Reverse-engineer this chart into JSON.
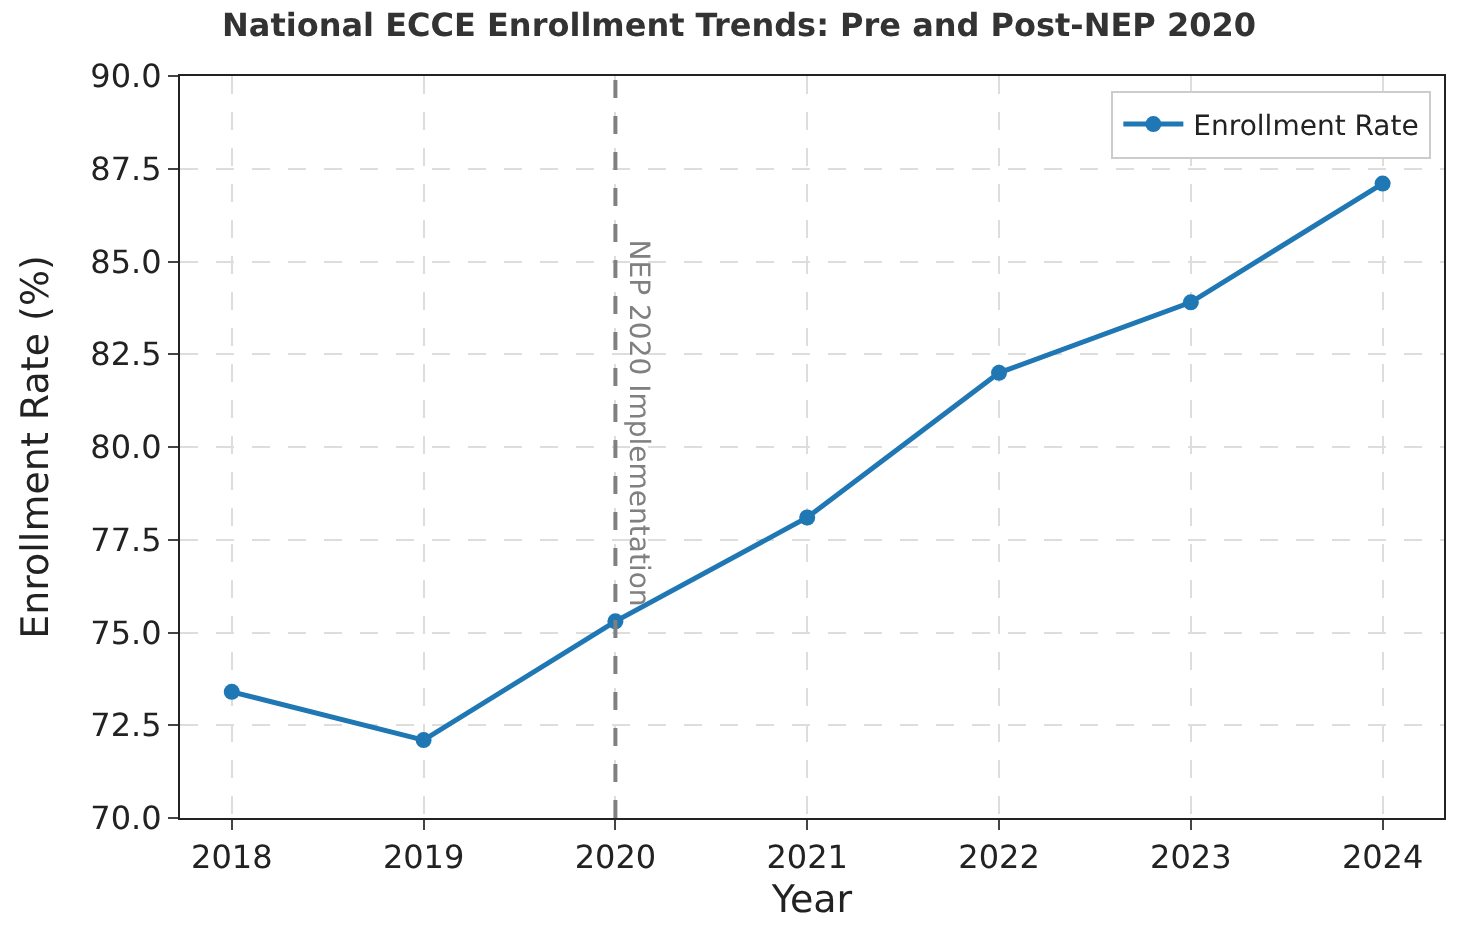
{
  "chart_data": {
    "type": "line",
    "title": "National ECCE Enrollment Trends: Pre and Post-NEP 2020",
    "xlabel": "Year",
    "ylabel": "Enrollment Rate (%)",
    "x": [
      2018,
      2019,
      2020,
      2021,
      2022,
      2023,
      2024
    ],
    "series": [
      {
        "name": "Enrollment Rate",
        "color": "#1f77b4",
        "values": [
          73.4,
          72.1,
          75.3,
          78.1,
          82.0,
          83.9,
          87.1
        ]
      }
    ],
    "xlim": [
      2017.73,
      2024.32
    ],
    "xticks": [
      2018,
      2019,
      2020,
      2021,
      2022,
      2023,
      2024
    ],
    "ylim": [
      70,
      90
    ],
    "yticks": [
      {
        "value": 70,
        "label": "70.0"
      },
      {
        "value": 72.5,
        "label": "72.5"
      },
      {
        "value": 75,
        "label": "75.0"
      },
      {
        "value": 77.5,
        "label": "77.5"
      },
      {
        "value": 80,
        "label": "80.0"
      },
      {
        "value": 82.5,
        "label": "82.5"
      },
      {
        "value": 85,
        "label": "85.0"
      },
      {
        "value": 87.5,
        "label": "87.5"
      },
      {
        "value": 90,
        "label": "90.0"
      }
    ],
    "ref_lines": [
      {
        "axis": "x",
        "value": 2020,
        "label": "NEP 2020 Implementation",
        "color": "#808080",
        "line_style": "dashed"
      }
    ],
    "grid": true,
    "legend": "top right",
    "marker": "circle",
    "line_style": "solid"
  }
}
